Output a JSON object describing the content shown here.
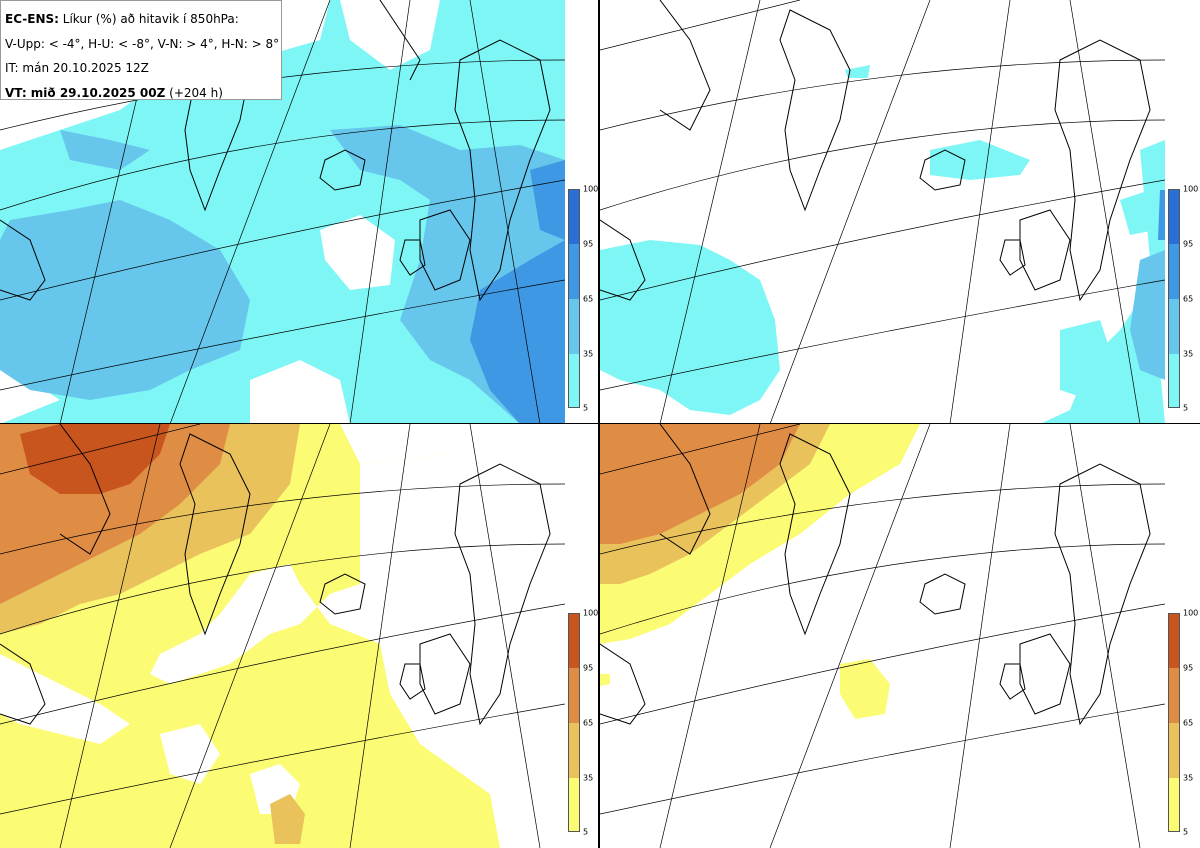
{
  "info": {
    "model_label": "EC-ENS:",
    "model_desc": "Líkur (%) að hitavik í 850hPa:",
    "thresholds": "V-Upp: < -4°, H-U: < -8°, V-N: > 4°, H-N: > 8°",
    "init_time": "IT: mán 20.10.2025 12Z",
    "valid_label": "VT: mið 29.10.2025 00Z",
    "valid_offset": "(+204 h)"
  },
  "colorbar": {
    "ticks": [
      "100",
      "95",
      "65",
      "35",
      "5"
    ],
    "cold_colors": [
      "#2a6fd6",
      "#3f98e4",
      "#66c6ec",
      "#7ef6f6"
    ],
    "warm_colors": [
      "#c8541e",
      "#df8c45",
      "#e9c25c",
      "#fbfb74"
    ]
  },
  "panels": [
    {
      "id": "cold-4",
      "scheme": "cold"
    },
    {
      "id": "cold-8",
      "scheme": "cold"
    },
    {
      "id": "warm-4",
      "scheme": "warm"
    },
    {
      "id": "warm-8",
      "scheme": "warm"
    }
  ]
}
